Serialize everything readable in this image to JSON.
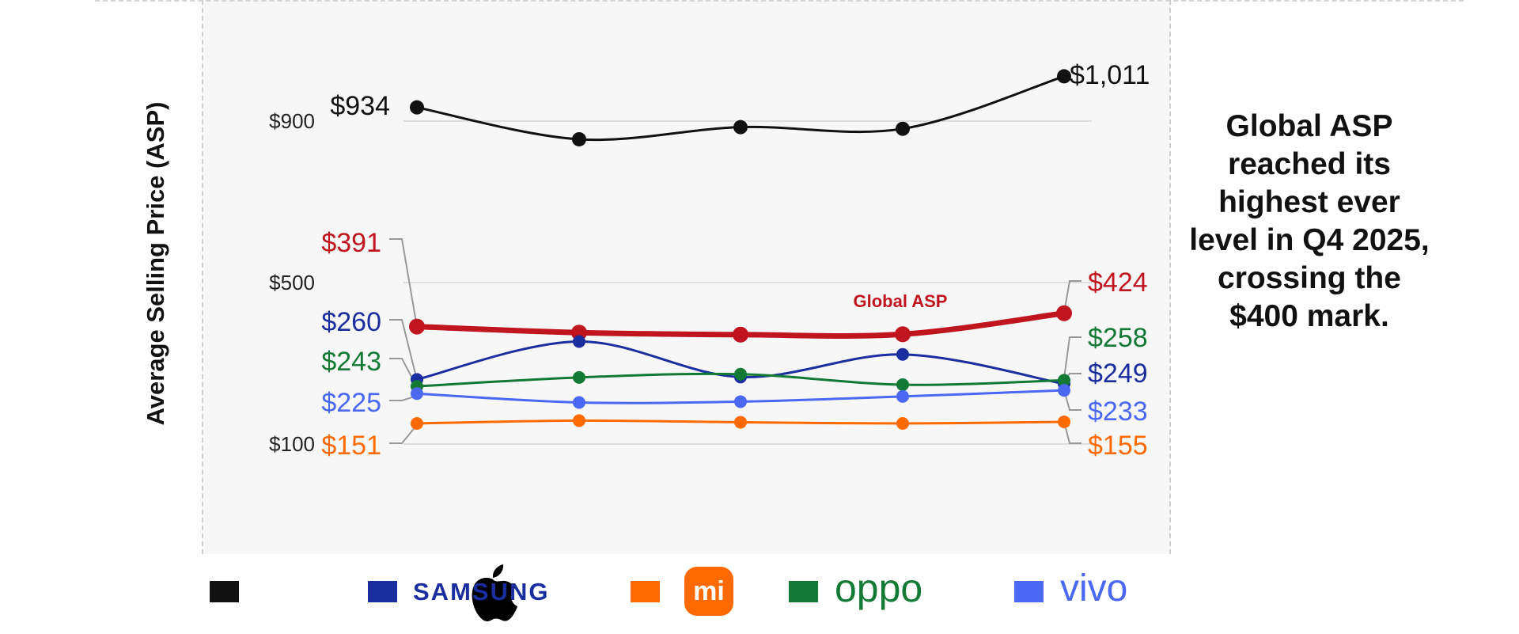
{
  "chart_data": {
    "type": "line",
    "ylabel": "Average Selling Price (ASP)",
    "x": [
      "",
      "",
      "",
      "",
      ""
    ],
    "yticks": [
      {
        "value": 900,
        "label": "$900"
      },
      {
        "value": 500,
        "label": "$500"
      },
      {
        "value": 100,
        "label": "$100"
      }
    ],
    "series": [
      {
        "key": "apple",
        "values": [
          934,
          855,
          885,
          881,
          1011
        ],
        "color": "#111111",
        "first_label": "$934",
        "last_label": "$1,011"
      },
      {
        "key": "global",
        "name": "Global ASP",
        "values": [
          391,
          376,
          371,
          372,
          424
        ],
        "color": "#c0141f",
        "first_label": "$391",
        "last_label": "$424"
      },
      {
        "key": "samsung",
        "values": [
          260,
          354,
          266,
          322,
          249
        ],
        "color": "#1b2ea0",
        "first_label": "$260",
        "last_label": "$249"
      },
      {
        "key": "oppo",
        "values": [
          243,
          265,
          273,
          247,
          258
        ],
        "color": "#127a35",
        "first_label": "$243",
        "last_label": "$258"
      },
      {
        "key": "vivo",
        "values": [
          225,
          203,
          205,
          218,
          233
        ],
        "color": "#4a68f2",
        "first_label": "$225",
        "last_label": "$233"
      },
      {
        "key": "xiaomi",
        "values": [
          151,
          158,
          154,
          151,
          155
        ],
        "color": "#ff6a00",
        "first_label": "$151",
        "last_label": "$155"
      }
    ],
    "legend": [
      "Apple",
      "SAMSUNG",
      "mi",
      "oppo",
      "vivo"
    ],
    "grid": true
  },
  "annotation": "Global ASP reached its highest ever level in Q4 2025, crossing the $400 mark.",
  "legend": {
    "apple": {
      "color": "#111111",
      "icon": "apple-logo-icon"
    },
    "samsung": {
      "label": "SAMSUNG",
      "color": "#1b2ea0"
    },
    "xiaomi": {
      "label": "mi",
      "color": "#ff6a00"
    },
    "oppo": {
      "label": "oppo",
      "color": "#127a35"
    },
    "vivo": {
      "label": "vivo",
      "color": "#4a68f2"
    }
  }
}
